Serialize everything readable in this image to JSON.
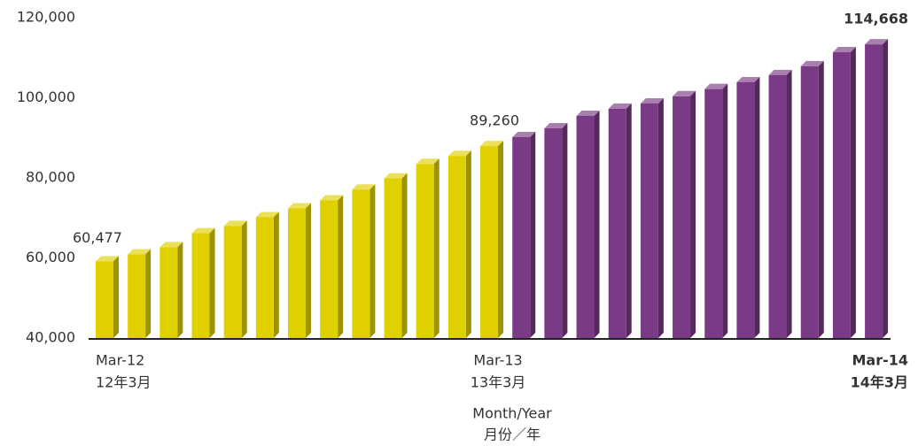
{
  "chart_data": {
    "type": "bar3d",
    "x_label": "Month/Year",
    "x_label_local": "月份／年",
    "categories": [
      "Mar-12",
      null,
      null,
      null,
      null,
      null,
      null,
      null,
      null,
      null,
      null,
      null,
      "Mar-13",
      null,
      null,
      null,
      null,
      null,
      null,
      null,
      null,
      null,
      null,
      null,
      "Mar-14"
    ],
    "categories_local": [
      "12年3月",
      null,
      null,
      null,
      null,
      null,
      null,
      null,
      null,
      null,
      null,
      null,
      "13年3月",
      null,
      null,
      null,
      null,
      null,
      null,
      null,
      null,
      null,
      null,
      null,
      "14年3月"
    ],
    "values": [
      60477,
      62200,
      64000,
      67500,
      69300,
      71500,
      73700,
      75700,
      78400,
      81200,
      84800,
      86800,
      89260,
      91500,
      93700,
      96800,
      98600,
      99900,
      101700,
      103500,
      105200,
      107000,
      109200,
      112700,
      114668
    ],
    "value_labels": [
      "60,477",
      null,
      null,
      null,
      null,
      null,
      null,
      null,
      null,
      null,
      null,
      null,
      "89,260",
      null,
      null,
      null,
      null,
      null,
      null,
      null,
      null,
      null,
      null,
      null,
      "114,668"
    ],
    "colors": [
      "#e0d000",
      "#e0d000",
      "#e0d000",
      "#e0d000",
      "#e0d000",
      "#e0d000",
      "#e0d000",
      "#e0d000",
      "#e0d000",
      "#e0d000",
      "#e0d000",
      "#e0d000",
      "#e0d000",
      "#7b3a85",
      "#7b3a85",
      "#7b3a85",
      "#7b3a85",
      "#7b3a85",
      "#7b3a85",
      "#7b3a85",
      "#7b3a85",
      "#7b3a85",
      "#7b3a85",
      "#7b3a85",
      "#7b3a85"
    ],
    "ylim": [
      40000,
      120000
    ],
    "yticks": [
      {
        "value": 40000,
        "label": "40,000"
      },
      {
        "value": 60000,
        "label": "60,000"
      },
      {
        "value": 80000,
        "label": "80,000"
      },
      {
        "value": 100000,
        "label": "100,000"
      },
      {
        "value": 120000,
        "label": "120,000"
      }
    ],
    "grid": false
  }
}
